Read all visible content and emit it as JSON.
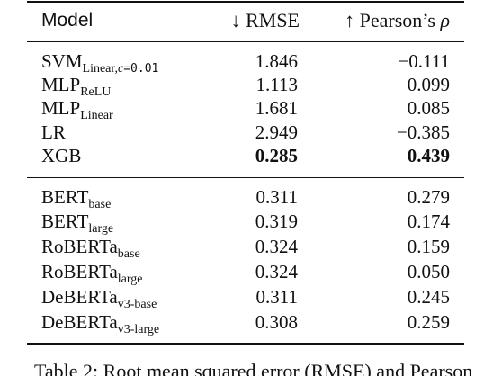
{
  "table": {
    "headers": {
      "model": "Model",
      "rmse_arrow": "↓",
      "rmse": "RMSE",
      "pearson_arrow": "↑",
      "pearson": "Pearson’s",
      "rho": "ρ"
    },
    "group1": [
      {
        "base": "SVM",
        "sub": "Linear,",
        "sub_var": "c",
        "sub_val": "=0.01",
        "rmse": "1.846",
        "pearson": "−0.111",
        "bold": false
      },
      {
        "base": "MLP",
        "sub": "ReLU",
        "rmse": "1.113",
        "pearson": "0.099",
        "bold": false
      },
      {
        "base": "MLP",
        "sub": "Linear",
        "rmse": "1.681",
        "pearson": "0.085",
        "bold": false
      },
      {
        "base": "LR",
        "sub": "",
        "rmse": "2.949",
        "pearson": "−0.385",
        "bold": false
      },
      {
        "base": "XGB",
        "sub": "",
        "rmse": "0.285",
        "pearson": "0.439",
        "bold": true
      }
    ],
    "group2": [
      {
        "base": "BERT",
        "sub": "base",
        "rmse": "0.311",
        "pearson": "0.279"
      },
      {
        "base": "BERT",
        "sub": "large",
        "rmse": "0.319",
        "pearson": "0.174"
      },
      {
        "base": "RoBERTa",
        "sub": "base",
        "rmse": "0.324",
        "pearson": "0.159"
      },
      {
        "base": "RoBERTa",
        "sub": "large",
        "rmse": "0.324",
        "pearson": "0.050"
      },
      {
        "base": "DeBERTa",
        "sub": "v3-base",
        "rmse": "0.311",
        "pearson": "0.245"
      },
      {
        "base": "DeBERTa",
        "sub": "v3-large",
        "rmse": "0.308",
        "pearson": "0.259"
      }
    ]
  },
  "caption": {
    "text": "Table 2: Root mean squared error (RMSE) and Pearson"
  }
}
